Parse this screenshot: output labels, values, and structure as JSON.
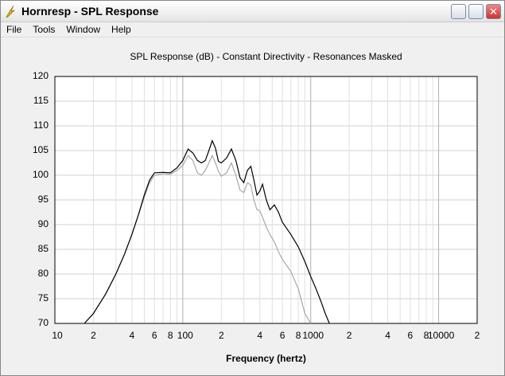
{
  "window": {
    "title": "Hornresp - SPL Response",
    "menu": [
      "File",
      "Tools",
      "Window",
      "Help"
    ]
  },
  "chart_data": {
    "type": "line",
    "title": "SPL Response (dB) - Constant Directivity - Resonances Masked",
    "x_label": "Frequency (hertz)",
    "log_x": true,
    "grid": true,
    "xlim": [
      10,
      20000
    ],
    "ylim": [
      70,
      120
    ],
    "yticks": [
      70,
      75,
      80,
      85,
      90,
      95,
      100,
      105,
      110,
      115,
      120
    ],
    "xticks": [
      10,
      {
        "value": 20,
        "label": "2"
      },
      {
        "value": 40,
        "label": "4"
      },
      {
        "value": 60,
        "label": "6"
      },
      {
        "value": 80,
        "label": "8"
      },
      100,
      {
        "value": 200,
        "label": "2"
      },
      {
        "value": 400,
        "label": "4"
      },
      {
        "value": 600,
        "label": "6"
      },
      {
        "value": 800,
        "label": "8"
      },
      1000,
      {
        "value": 2000,
        "label": "2"
      },
      {
        "value": 4000,
        "label": "4"
      },
      {
        "value": 6000,
        "label": "6"
      },
      {
        "value": 8000,
        "label": "8"
      },
      10000,
      {
        "value": 20000,
        "label": "2"
      }
    ],
    "xminor_ticks": [
      30,
      50,
      70,
      90,
      300,
      500,
      700,
      900,
      3000,
      5000,
      7000,
      9000
    ],
    "x": [
      17,
      20,
      25,
      30,
      35,
      40,
      45,
      50,
      55,
      60,
      70,
      80,
      90,
      100,
      110,
      120,
      130,
      140,
      150,
      160,
      170,
      180,
      190,
      200,
      220,
      240,
      260,
      280,
      300,
      320,
      340,
      360,
      380,
      400,
      420,
      450,
      480,
      520,
      560,
      600,
      700,
      800,
      900,
      1000,
      1100,
      1200,
      1300,
      1400
    ],
    "series": [
      {
        "color": "#a8a8a8",
        "values": [
          70,
          72,
          76,
          80,
          84,
          88,
          92,
          95.5,
          98.5,
          100,
          100.3,
          100.2,
          101,
          102,
          104,
          103,
          100.5,
          100,
          101,
          102.5,
          104,
          102.5,
          100.8,
          99.8,
          100.5,
          102.5,
          100,
          97,
          96.5,
          98.5,
          98,
          95,
          93,
          92.8,
          91.5,
          89.5,
          88,
          86.5,
          84.5,
          83,
          80.5,
          77,
          72,
          70,
          null,
          null,
          null,
          null
        ]
      },
      {
        "color": "#000000",
        "values": [
          70,
          72,
          76,
          80,
          84,
          88,
          92,
          96,
          99,
          100.5,
          100.6,
          100.5,
          101.5,
          103,
          105.3,
          104.5,
          103,
          102.5,
          103,
          105,
          107,
          105.5,
          102.8,
          102.5,
          103.5,
          105.3,
          103,
          99.5,
          98.5,
          101,
          101.8,
          99,
          96,
          96.8,
          98.2,
          95,
          93,
          94,
          92.5,
          90.5,
          88,
          85.5,
          82.5,
          79.5,
          77,
          74.5,
          72,
          70
        ]
      }
    ]
  }
}
